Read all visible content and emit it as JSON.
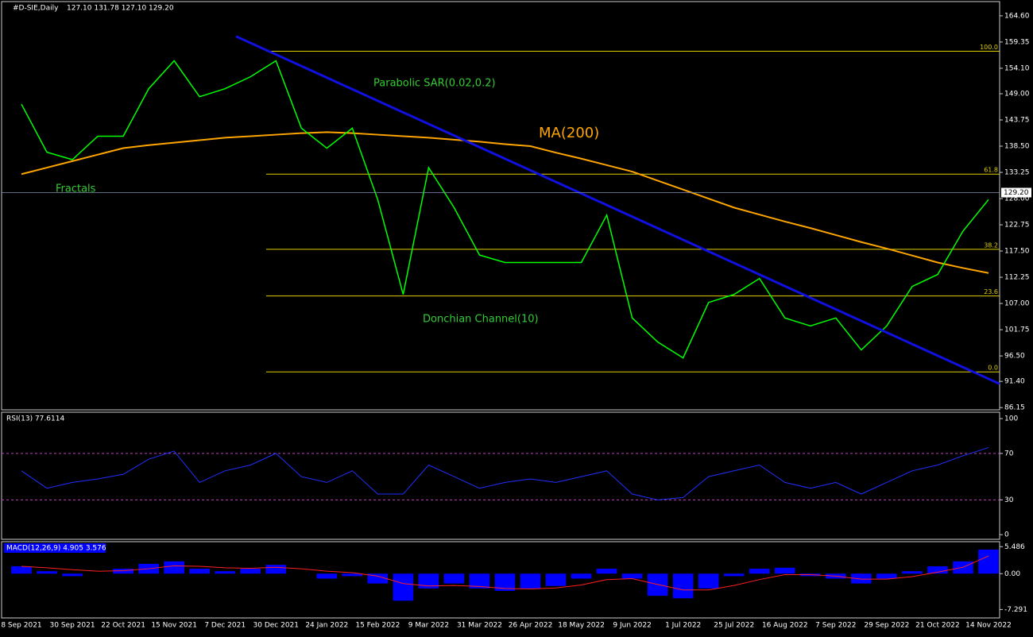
{
  "header": {
    "symbol": "#D-SIE,Daily",
    "ohlc": "127.10 131.78 127.10 129.20"
  },
  "dates": [
    "8 Sep 2021",
    null,
    "30 Sep 2021",
    null,
    "22 Oct 2021",
    null,
    "15 Nov 2021",
    null,
    "7 Dec 2021",
    null,
    "30 Dec 2021",
    null,
    "24 Jan 2022",
    null,
    "15 Feb 2022",
    null,
    "9 Mar 2022",
    null,
    "31 Mar 2022",
    null,
    "26 Apr 2022",
    null,
    "18 May 2022",
    null,
    "9 Jun 2022",
    null,
    "1 Jul 2022",
    null,
    "25 Jul 2022",
    null,
    "16 Aug 2022",
    null,
    "7 Sep 2022",
    null,
    "29 Sep 2022",
    null,
    "21 Oct 2022",
    null,
    "14 Nov 2022"
  ],
  "main": {
    "ylim": [
      85.7,
      167.45
    ],
    "yticks": [
      {
        "value": 164.6,
        "label": "164.60"
      },
      {
        "value": 159.35,
        "label": "159.35"
      },
      {
        "value": 154.1,
        "label": "154.10"
      },
      {
        "value": 149,
        "label": "149.00"
      },
      {
        "value": 143.75,
        "label": "143.75"
      },
      {
        "value": 138.5,
        "label": "138.50"
      },
      {
        "value": 133.25,
        "label": "133.25"
      },
      {
        "value": 128,
        "label": "128.00"
      },
      {
        "value": 122.75,
        "label": "122.75"
      },
      {
        "value": 117.5,
        "label": "117.50"
      },
      {
        "value": 112.25,
        "label": "112.25"
      },
      {
        "value": 107,
        "label": "107.00"
      },
      {
        "value": 101.75,
        "label": "101.75"
      },
      {
        "value": 96.5,
        "label": "96.50"
      },
      {
        "value": 91.4,
        "label": "91.40"
      },
      {
        "value": 86.15,
        "label": "86.15"
      }
    ],
    "price": {
      "color": "#00ff00",
      "values": [
        146.9,
        137.3,
        135.8,
        140.5,
        140.5,
        150,
        155.6,
        148.4,
        150,
        152.4,
        155.6,
        142.1,
        138.1,
        142.1,
        127.8,
        108.8,
        134.2,
        126.2,
        116.7,
        115.2,
        115.2,
        115.2,
        115.2,
        124.7,
        104.1,
        99.3,
        96.1,
        107.2,
        108.8,
        112,
        104.1,
        102.5,
        104.1,
        97.7,
        102.5,
        110.4,
        112.8,
        121.5,
        127.8
      ]
    },
    "ma": {
      "color": "#ffa500",
      "values": [
        132.9,
        134.2,
        135.5,
        136.8,
        138.1,
        138.7,
        139.2,
        139.7,
        140.2,
        140.5,
        140.8,
        141.1,
        141.3,
        141.1,
        140.8,
        140.5,
        140.2,
        139.8,
        139.4,
        138.9,
        138.5,
        137.2,
        136,
        134.7,
        133.4,
        131.6,
        129.8,
        128,
        126.2,
        124.8,
        123.4,
        122.1,
        120.7,
        119.3,
        118,
        116.6,
        115.2,
        114.1,
        113.1
      ]
    },
    "last": {
      "value": 129.2,
      "label": "129.20"
    },
    "trend": {
      "color": "#1010e0",
      "from": 160.5,
      "to": 90.9
    },
    "fib": [
      {
        "label": "100.0",
        "price": 157.5
      },
      {
        "label": "61.8",
        "price": 132.9
      },
      {
        "label": "38.2",
        "price": 117.85
      },
      {
        "label": "23.6",
        "price": 108.5
      },
      {
        "label": "0.0",
        "price": 93.3
      }
    ],
    "annotations": {
      "sar": "Parabolic SAR(0.02,0.2)",
      "ma": "MA(200)",
      "fractals": "Fractals",
      "donchian": "Donchian Channel(10)"
    }
  },
  "rsi": {
    "title": "RSI(13) 77.6114",
    "ylim": [
      -4,
      105.5
    ],
    "yticks": [
      100,
      70,
      30,
      0
    ],
    "levels": [
      70,
      30
    ],
    "color": "#2030ff",
    "values": [
      55,
      40,
      45,
      48,
      52,
      65,
      72,
      45,
      55,
      60,
      70,
      50,
      45,
      55,
      35,
      35,
      60,
      50,
      40,
      45,
      48,
      45,
      50,
      55,
      35,
      30,
      32,
      50,
      55,
      60,
      45,
      40,
      45,
      35,
      45,
      55,
      60,
      68,
      75
    ]
  },
  "macd": {
    "title": "MACD(12,26,9) 4.905 3.576",
    "ylim": [
      -9,
      6.5
    ],
    "yticks": [
      5.486,
      {
        "value": 0,
        "label": "0.00"
      },
      -7.291
    ],
    "color": "#0000ff",
    "signal_color": "#ff2020",
    "values": [
      1.5,
      0.5,
      -0.5,
      0,
      1,
      2,
      2.5,
      1,
      0.5,
      1,
      1.8,
      0,
      -1,
      -0.5,
      -2,
      -5.5,
      -3,
      -2,
      -3,
      -3.5,
      -3,
      -2.5,
      -1,
      1,
      -1,
      -4.5,
      -5,
      -3,
      -0.5,
      1,
      1.2,
      -0.5,
      -1,
      -2,
      -1,
      0.5,
      1.5,
      2.5,
      4.9
    ],
    "signal": [
      1.5,
      1.2,
      0.8,
      0.5,
      0.6,
      1,
      1.6,
      1.5,
      1.2,
      1.1,
      1.3,
      1,
      0.5,
      0.2,
      -0.5,
      -2,
      -2.5,
      -2.4,
      -2.6,
      -3,
      -3.1,
      -2.9,
      -2.3,
      -1.2,
      -1,
      -2.2,
      -3.3,
      -3.3,
      -2.4,
      -1.2,
      -0.2,
      -0.2,
      -0.5,
      -1.1,
      -1.1,
      -0.6,
      0.3,
      1.3,
      3.6
    ]
  }
}
